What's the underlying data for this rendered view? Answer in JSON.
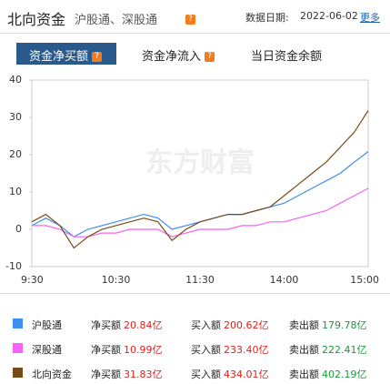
{
  "header": {
    "title": "北向资金",
    "subtitle": "沪股通、深股通",
    "date_label": "数据日期:",
    "date": "2022-06-02",
    "more": "更多"
  },
  "tabs": [
    "资金净买额",
    "资金净流入",
    "当日资金余额"
  ],
  "chart_data": {
    "type": "line",
    "watermark": "东方财富",
    "categories": [
      "9:30",
      null,
      null,
      null,
      null,
      null,
      "10:30",
      null,
      null,
      null,
      null,
      null,
      "11:30",
      null,
      null,
      null,
      null,
      null,
      "14:00",
      null,
      null,
      null,
      null,
      null,
      "15:00"
    ],
    "series": [
      {
        "name": "沪股通",
        "color": "#3d8ef0",
        "values": [
          1,
          3,
          1,
          -2,
          0,
          1,
          2,
          3,
          4,
          3,
          0,
          1,
          2,
          3,
          4,
          4,
          5,
          6,
          7,
          9,
          11,
          13,
          15,
          18,
          20.84
        ]
      },
      {
        "name": "深股通",
        "color": "#f562f5",
        "values": [
          1,
          1,
          0,
          -2,
          -2,
          -1,
          -1,
          0,
          0,
          0,
          -2,
          -1,
          0,
          0,
          0,
          1,
          1,
          2,
          2,
          3,
          4,
          5,
          7,
          9,
          10.99
        ]
      },
      {
        "name": "北向资金",
        "color": "#774a18",
        "values": [
          2,
          4,
          1,
          -5,
          -2,
          0,
          1,
          2,
          3,
          2,
          -3,
          0,
          2,
          3,
          4,
          4,
          5,
          6,
          9,
          12,
          15,
          18,
          22,
          26,
          31.83
        ]
      }
    ],
    "ylim": [
      -10,
      40
    ],
    "yticks": [
      -10,
      0,
      10,
      20,
      30,
      40
    ],
    "grid": false
  },
  "legend_table": {
    "rows": [
      [
        "沪股通",
        "净买额",
        "20.84亿",
        "买入额",
        "200.62亿",
        "卖出额",
        "179.78亿"
      ],
      [
        "深股通",
        "净买额",
        "10.99亿",
        "买入额",
        "233.40亿",
        "卖出额",
        "222.41亿"
      ],
      [
        "北向资金",
        "净买额",
        "31.83亿",
        "买入额",
        "434.01亿",
        "卖出额",
        "402.19亿"
      ]
    ]
  }
}
